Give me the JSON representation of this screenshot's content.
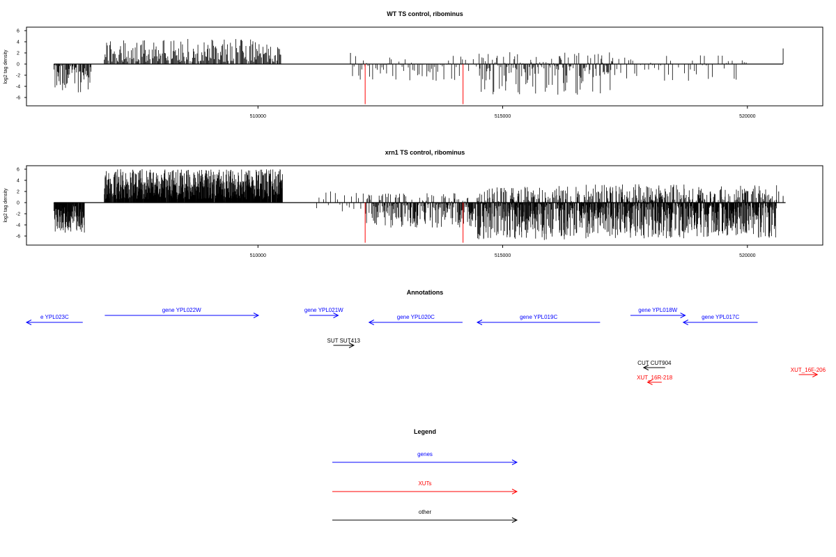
{
  "chart_data": [
    {
      "type": "bar",
      "title": "WT TS control, ribominus",
      "ylabel": "log2 tag density",
      "xlabel": "",
      "xlim": [
        505270,
        521540
      ],
      "ylim": [
        -7.2,
        6.9
      ],
      "yticks": [
        -6,
        -4,
        -2,
        0,
        2,
        4,
        6
      ],
      "xticks": [
        510000,
        515000,
        520000
      ],
      "baseline_span": [
        505830,
        520730
      ],
      "profile": [
        {
          "range": [
            505830,
            506620
          ],
          "density": 1.2,
          "min": -5.2,
          "max": 0,
          "seed": 11
        },
        {
          "range": [
            506860,
            510470
          ],
          "density": 0.9,
          "min": 0.4,
          "max": 4.5,
          "seed": 21
        },
        {
          "range": [
            511900,
            514550
          ],
          "density": 0.45,
          "min": -3.0,
          "max": 1.5,
          "seed": 31
        },
        {
          "range": [
            514520,
            517250
          ],
          "density": 1.0,
          "min": -5.5,
          "max": 2.2,
          "seed": 41
        },
        {
          "range": [
            517250,
            520000
          ],
          "density": 0.35,
          "min": -3.0,
          "max": 1.7,
          "seed": 51
        }
      ],
      "highlight_bars": [
        {
          "x": 512190,
          "y": -7.2,
          "color": "#ff0000"
        },
        {
          "x": 514190,
          "y": -7.2,
          "color": "#ff0000"
        }
      ],
      "extra_bars": [
        {
          "x": 520730,
          "y": 2.8
        },
        {
          "x": 511890,
          "y": 2.0
        },
        {
          "x": 510440,
          "y": 2.7
        }
      ]
    },
    {
      "type": "bar",
      "title": "xrn1 TS control, ribominus",
      "ylabel": "log2 tag density",
      "xlabel": "",
      "xlim": [
        505270,
        521540
      ],
      "ylim": [
        -7.2,
        6.9
      ],
      "yticks": [
        -6,
        -4,
        -2,
        0,
        2,
        4,
        6
      ],
      "xticks": [
        510000,
        515000,
        520000
      ],
      "baseline_span": [
        505830,
        520780
      ],
      "profile": [
        {
          "range": [
            505830,
            506460
          ],
          "density": 3.2,
          "min": -5.5,
          "max": 0,
          "seed": 12
        },
        {
          "range": [
            506860,
            510500
          ],
          "density": 3.5,
          "min": 0.6,
          "max": 6.0,
          "seed": 22
        },
        {
          "range": [
            511200,
            512200
          ],
          "density": 0.3,
          "min": -1.6,
          "max": 2.2,
          "seed": 32
        },
        {
          "range": [
            512200,
            514500
          ],
          "density": 1.6,
          "min": -4.5,
          "max": 1.7,
          "seed": 42
        },
        {
          "range": [
            514480,
            516700
          ],
          "density": 3.2,
          "min": -6.8,
          "max": 3.0,
          "seed": 52
        },
        {
          "range": [
            516700,
            520600
          ],
          "density": 3.5,
          "min": -6.4,
          "max": 3.3,
          "seed": 62
        }
      ],
      "highlight_bars": [
        {
          "x": 512190,
          "y": -7.2,
          "color": "#ff0000"
        },
        {
          "x": 514190,
          "y": -7.2,
          "color": "#ff0000"
        }
      ],
      "extra_bars": [
        {
          "x": 520640,
          "y": 2.0
        },
        {
          "x": 520730,
          "y": 1.2
        }
      ]
    }
  ],
  "annotations": {
    "title": "Annotations",
    "features": [
      {
        "label": "e YPL023C",
        "start": 505270,
        "end": 506420,
        "strand": "-",
        "row": 1,
        "color": "#0000ff"
      },
      {
        "label": "gene YPL022W",
        "start": 506870,
        "end": 510010,
        "strand": "+",
        "row": 0,
        "color": "#0000ff"
      },
      {
        "label": "gene YPL021W",
        "start": 511050,
        "end": 511640,
        "strand": "+",
        "row": 0,
        "color": "#0000ff"
      },
      {
        "label": "gene YPL020C",
        "start": 512270,
        "end": 514180,
        "strand": "-",
        "row": 1,
        "color": "#0000ff"
      },
      {
        "label": "gene YPL019C",
        "start": 514480,
        "end": 516990,
        "strand": "-",
        "row": 1,
        "color": "#0000ff"
      },
      {
        "label": "gene YPL018W",
        "start": 517610,
        "end": 518730,
        "strand": "+",
        "row": 0,
        "color": "#0000ff"
      },
      {
        "label": "gene YPL017C",
        "start": 518690,
        "end": 520210,
        "strand": "-",
        "row": 1,
        "color": "#0000ff"
      },
      {
        "label": "SUT SUT413",
        "start": 511540,
        "end": 511960,
        "strand": "+",
        "row": 3,
        "color": "#000000"
      },
      {
        "label": "CUT CUT904",
        "start": 517880,
        "end": 518320,
        "strand": "-",
        "row": 6,
        "color": "#000000"
      },
      {
        "label": "XUT_16R-218",
        "start": 517960,
        "end": 518250,
        "strand": "-",
        "row": 8,
        "color": "#ff0000"
      },
      {
        "label": "XUT_16F-206",
        "start": 521050,
        "end": 521430,
        "strand": "+",
        "row": 7,
        "color": "#ff0000"
      }
    ]
  },
  "legend": {
    "title": "Legend",
    "items": [
      {
        "label": "genes",
        "color": "#0000ff"
      },
      {
        "label": "XUTs",
        "color": "#ff0000"
      },
      {
        "label": "other",
        "color": "#000000"
      }
    ]
  }
}
